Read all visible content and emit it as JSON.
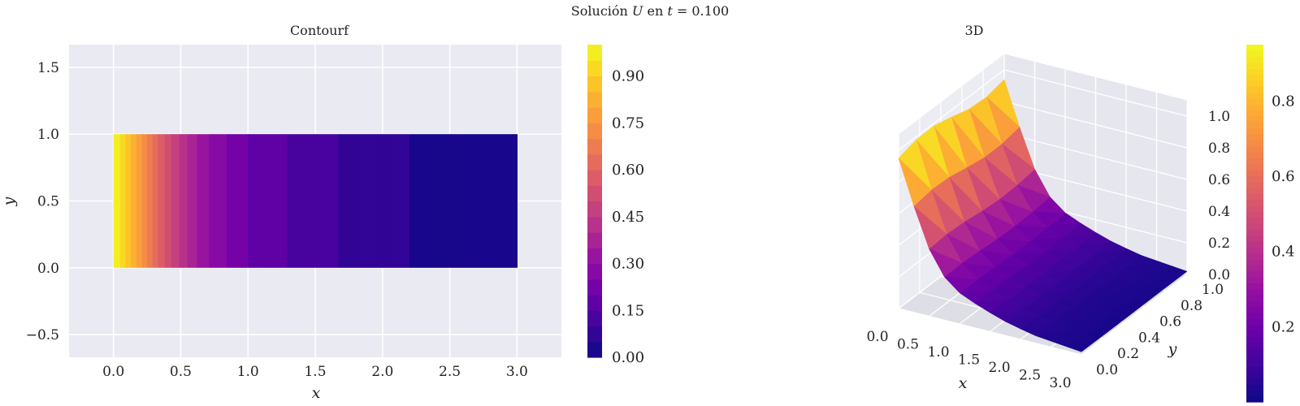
{
  "figure": {
    "title_prefix": "Solución ",
    "title_var": "U",
    "title_mid": " en ",
    "title_t": "t",
    "title_suffix": " = 0.100"
  },
  "colors": {
    "axes_bg": "#eaeaf2",
    "grid": "#ffffff",
    "colormap": "plasma",
    "plasma_stops": [
      "#0d0887",
      "#3e049c",
      "#6a00a8",
      "#900da4",
      "#b12a90",
      "#cc4778",
      "#e16462",
      "#f2844b",
      "#fca636",
      "#fcce25",
      "#f0f921"
    ]
  },
  "chart_data": [
    {
      "type": "contourf",
      "title": "Contourf",
      "xlabel": "x",
      "ylabel": "y",
      "xlim": [
        -0.33,
        3.33
      ],
      "ylim": [
        -0.67,
        1.67
      ],
      "xticks": [
        "0.0",
        "0.5",
        "1.0",
        "1.5",
        "2.0",
        "2.5",
        "3.0"
      ],
      "yticks": [
        "−0.5",
        "0.0",
        "0.5",
        "1.0",
        "1.5"
      ],
      "domain": {
        "x": [
          0,
          3
        ],
        "y": [
          0,
          1
        ]
      },
      "levels": [
        0.0,
        0.05,
        0.1,
        0.15,
        0.2,
        0.25,
        0.3,
        0.35,
        0.4,
        0.45,
        0.5,
        0.55,
        0.6,
        0.65,
        0.7,
        0.75,
        0.8,
        0.85,
        0.9,
        0.95,
        1.0
      ],
      "profile_x": [
        0.0,
        0.05,
        0.1,
        0.15,
        0.2,
        0.25,
        0.3,
        0.4,
        0.5,
        0.6,
        0.75,
        1.0,
        1.35,
        1.75,
        2.2,
        3.0
      ],
      "profile_u": [
        1.0,
        0.95,
        0.88,
        0.82,
        0.76,
        0.7,
        0.63,
        0.53,
        0.44,
        0.36,
        0.28,
        0.2,
        0.14,
        0.09,
        0.05,
        0.02
      ],
      "colorbar": {
        "ticks": [
          "0.00",
          "0.15",
          "0.30",
          "0.45",
          "0.60",
          "0.75",
          "0.90"
        ],
        "range": [
          0,
          1
        ]
      }
    },
    {
      "type": "surface3d",
      "title": "3D",
      "xlabel": "x",
      "ylabel": "y",
      "xticks": [
        "0.0",
        "0.5",
        "1.0",
        "1.5",
        "2.0",
        "2.5",
        "3.0"
      ],
      "yticks": [
        "0.0",
        "0.2",
        "0.4",
        "0.6",
        "0.8",
        "1.0"
      ],
      "zticks": [
        "0.0",
        "0.2",
        "0.4",
        "0.6",
        "0.8",
        "1.0"
      ],
      "colorbar": {
        "ticks": [
          "0.2",
          "0.4",
          "0.6",
          "0.8"
        ],
        "range": [
          0,
          0.95
        ]
      }
    }
  ]
}
